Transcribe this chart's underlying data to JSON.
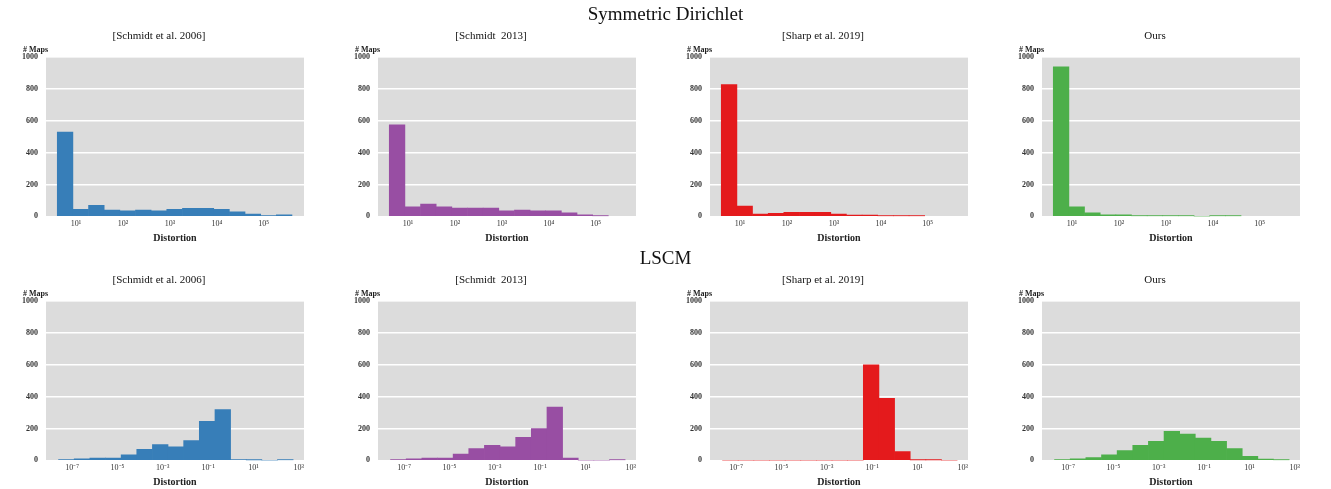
{
  "chart_data": [
    {
      "type": "histogram",
      "title": "[Schmidt et al. 2006]",
      "annotations": [
        "Symmetric Dirichlet"
      ],
      "xlabel": "Distortion",
      "ylabel": "# Maps",
      "log": "x",
      "color": "#377eb8",
      "bins": [
        4,
        8.6,
        18.5,
        40,
        86,
        185,
        400,
        860,
        1850,
        4000,
        8600,
        18500,
        40000,
        86000,
        185000,
        400000
      ],
      "values": [
        530,
        45,
        70,
        40,
        35,
        40,
        35,
        45,
        50,
        50,
        45,
        28,
        15,
        5,
        10
      ],
      "xlim": [
        2.3,
        720000
      ],
      "xticks": [
        {
          "value": 10,
          "label": "10¹"
        },
        {
          "value": 100,
          "label": "10²"
        },
        {
          "value": 1000,
          "label": "10³"
        },
        {
          "value": 10000,
          "label": "10⁴"
        },
        {
          "value": 100000,
          "label": "10⁵"
        }
      ],
      "ylim": [
        0,
        1000
      ],
      "yticks": [
        0,
        200,
        400,
        600,
        800,
        1000
      ],
      "grid": "y",
      "legend": false
    },
    {
      "type": "histogram",
      "title": "[Schmidt  2013]",
      "xlabel": "Distortion",
      "ylabel": "# Maps",
      "log": "x",
      "color": "#984ea3",
      "bins": [
        4,
        8.6,
        18.5,
        40,
        86,
        185,
        400,
        860,
        1850,
        4000,
        8600,
        18500,
        40000,
        86000,
        185000
      ],
      "values": [
        575,
        60,
        78,
        60,
        52,
        52,
        52,
        35,
        40,
        35,
        35,
        22,
        10,
        3
      ],
      "xlim": [
        2.3,
        720000
      ],
      "xticks": [
        {
          "value": 10,
          "label": "10¹"
        },
        {
          "value": 100,
          "label": "10²"
        },
        {
          "value": 1000,
          "label": "10³"
        },
        {
          "value": 10000,
          "label": "10⁴"
        },
        {
          "value": 100000,
          "label": "10⁵"
        }
      ],
      "ylim": [
        0,
        1000
      ],
      "yticks": [
        0,
        200,
        400,
        600,
        800,
        1000
      ],
      "grid": "y",
      "legend": false
    },
    {
      "type": "histogram",
      "title": "[Sharp et al. 2019]",
      "xlabel": "Distortion",
      "ylabel": "# Maps",
      "log": "x",
      "color": "#e41a1c",
      "bins": [
        4,
        8.6,
        18.5,
        40,
        86,
        185,
        400,
        860,
        1850,
        4000,
        8600,
        18500,
        40000,
        86000
      ],
      "values": [
        828,
        65,
        15,
        20,
        25,
        25,
        25,
        15,
        8,
        8,
        3,
        3,
        3
      ],
      "xlim": [
        2.3,
        720000
      ],
      "xticks": [
        {
          "value": 10,
          "label": "10¹"
        },
        {
          "value": 100,
          "label": "10²"
        },
        {
          "value": 1000,
          "label": "10³"
        },
        {
          "value": 10000,
          "label": "10⁴"
        },
        {
          "value": 100000,
          "label": "10⁵"
        }
      ],
      "ylim": [
        0,
        1000
      ],
      "yticks": [
        0,
        200,
        400,
        600,
        800,
        1000
      ],
      "grid": "y",
      "legend": false
    },
    {
      "type": "histogram",
      "title": "Ours",
      "xlabel": "Distortion",
      "ylabel": "# Maps",
      "log": "x",
      "color": "#4daf4a",
      "bins": [
        4,
        8.6,
        18.5,
        40,
        86,
        185,
        400,
        860,
        1850,
        4000,
        8600,
        18500,
        40000
      ],
      "values": [
        940,
        60,
        22,
        10,
        10,
        3,
        3,
        3,
        3,
        0,
        3,
        3
      ],
      "xlim": [
        2.3,
        720000
      ],
      "xticks": [
        {
          "value": 10,
          "label": "10¹"
        },
        {
          "value": 100,
          "label": "10²"
        },
        {
          "value": 1000,
          "label": "10³"
        },
        {
          "value": 10000,
          "label": "10⁴"
        },
        {
          "value": 100000,
          "label": "10⁵"
        }
      ],
      "ylim": [
        0,
        1000
      ],
      "yticks": [
        0,
        200,
        400,
        600,
        800,
        1000
      ],
      "grid": "y",
      "legend": false
    },
    {
      "type": "histogram",
      "title": "[Schmidt et al. 2006]",
      "annotations": [
        "LSCM"
      ],
      "xlabel": "Distortion",
      "ylabel": "# Maps",
      "log": "x",
      "color": "#377eb8",
      "bins": [
        2.5e-08,
        1.23e-07,
        6.03e-07,
        2.95e-06,
        1.45e-05,
        7.08e-05,
        0.000347,
        0.0017,
        0.00832,
        0.0407,
        0.2,
        0.98,
        4.8,
        23.4,
        115,
        562
      ],
      "values": [
        5,
        10,
        15,
        15,
        35,
        70,
        100,
        85,
        125,
        245,
        320,
        5,
        2,
        0,
        3
      ],
      "xlim": [
        7.5e-09,
        1700
      ],
      "xticks": [
        {
          "value": 1e-07,
          "label": "10⁻⁷"
        },
        {
          "value": 1e-05,
          "label": "10⁻⁵"
        },
        {
          "value": 0.001,
          "label": "10⁻³"
        },
        {
          "value": 0.1,
          "label": "10⁻¹"
        },
        {
          "value": 10,
          "label": "10¹"
        },
        {
          "value": 1000,
          "label": "10³"
        }
      ],
      "ylim": [
        0,
        1000
      ],
      "yticks": [
        0,
        200,
        400,
        600,
        800,
        1000
      ],
      "grid": "y",
      "legend": false
    },
    {
      "type": "histogram",
      "title": "[Schmidt  2013]",
      "xlabel": "Distortion",
      "ylabel": "# Maps",
      "log": "x",
      "color": "#984ea3",
      "bins": [
        2.5e-08,
        1.23e-07,
        6.03e-07,
        2.95e-06,
        1.45e-05,
        7.08e-05,
        0.000347,
        0.0017,
        0.00832,
        0.0407,
        0.2,
        0.98,
        4.8,
        23.4,
        115,
        562
      ],
      "values": [
        5,
        10,
        15,
        15,
        40,
        75,
        95,
        85,
        145,
        200,
        335,
        15,
        0,
        0,
        3
      ],
      "xlim": [
        7.5e-09,
        1700
      ],
      "xticks": [
        {
          "value": 1e-07,
          "label": "10⁻⁷"
        },
        {
          "value": 1e-05,
          "label": "10⁻⁵"
        },
        {
          "value": 0.001,
          "label": "10⁻³"
        },
        {
          "value": 0.1,
          "label": "10⁻¹"
        },
        {
          "value": 10,
          "label": "10¹"
        },
        {
          "value": 1000,
          "label": "10³"
        }
      ],
      "ylim": [
        0,
        1000
      ],
      "yticks": [
        0,
        200,
        400,
        600,
        800,
        1000
      ],
      "grid": "y",
      "legend": false
    },
    {
      "type": "histogram",
      "title": "[Sharp et al. 2019]",
      "xlabel": "Distortion",
      "ylabel": "# Maps",
      "log": "x",
      "color": "#e41a1c",
      "bins": [
        2.5e-08,
        1.23e-07,
        6.03e-07,
        2.95e-06,
        1.45e-05,
        7.08e-05,
        0.000347,
        0.0017,
        0.00832,
        0.0407,
        0.2,
        0.98,
        4.8,
        23.4,
        115,
        562
      ],
      "values": [
        0,
        0,
        0,
        0,
        0,
        0,
        0,
        0,
        0,
        600,
        390,
        55,
        2,
        2,
        0
      ],
      "xlim": [
        7.5e-09,
        1700
      ],
      "xticks": [
        {
          "value": 1e-07,
          "label": "10⁻⁷"
        },
        {
          "value": 1e-05,
          "label": "10⁻⁵"
        },
        {
          "value": 0.001,
          "label": "10⁻³"
        },
        {
          "value": 0.1,
          "label": "10⁻¹"
        },
        {
          "value": 10,
          "label": "10¹"
        },
        {
          "value": 1000,
          "label": "10³"
        }
      ],
      "ylim": [
        0,
        1000
      ],
      "yticks": [
        0,
        200,
        400,
        600,
        800,
        1000
      ],
      "grid": "y",
      "legend": false
    },
    {
      "type": "histogram",
      "title": "Ours",
      "xlabel": "Distortion",
      "ylabel": "# Maps",
      "log": "x",
      "color": "#4daf4a",
      "bins": [
        2.5e-08,
        1.23e-07,
        6.03e-07,
        2.95e-06,
        1.45e-05,
        7.08e-05,
        0.000347,
        0.0017,
        0.00832,
        0.0407,
        0.2,
        0.98,
        4.8,
        23.4,
        115,
        562
      ],
      "values": [
        5,
        10,
        18,
        35,
        62,
        95,
        120,
        183,
        165,
        140,
        120,
        75,
        25,
        8,
        3
      ],
      "xlim": [
        7.5e-09,
        1700
      ],
      "xticks": [
        {
          "value": 1e-07,
          "label": "10⁻⁷"
        },
        {
          "value": 1e-05,
          "label": "10⁻⁵"
        },
        {
          "value": 0.001,
          "label": "10⁻³"
        },
        {
          "value": 0.1,
          "label": "10⁻¹"
        },
        {
          "value": 10,
          "label": "10¹"
        },
        {
          "value": 1000,
          "label": "10³"
        }
      ],
      "ylim": [
        0,
        1000
      ],
      "yticks": [
        0,
        200,
        400,
        600,
        800,
        1000
      ],
      "grid": "y",
      "legend": false
    }
  ]
}
